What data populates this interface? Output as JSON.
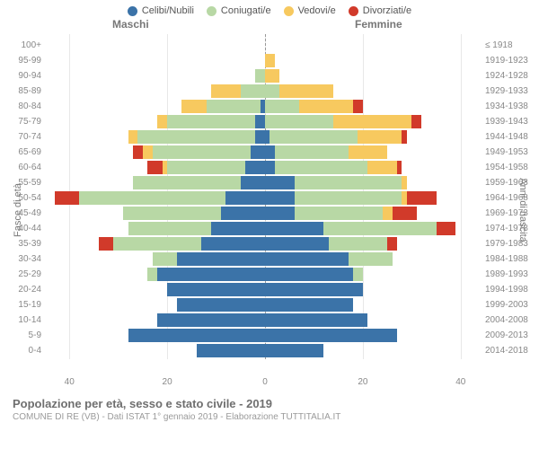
{
  "legend": [
    {
      "label": "Celibi/Nubili",
      "color": "#3b73a8"
    },
    {
      "label": "Coniugati/e",
      "color": "#b8d8a5"
    },
    {
      "label": "Vedovi/e",
      "color": "#f7c95f"
    },
    {
      "label": "Divorziati/e",
      "color": "#d13a2a"
    }
  ],
  "header_male": "Maschi",
  "header_female": "Femmine",
  "ylabel_left": "Fasce di età",
  "ylabel_right": "Anni di nascita",
  "xaxis": {
    "max": 45,
    "ticks": [
      40,
      20,
      0,
      20,
      40
    ]
  },
  "title": "Popolazione per età, sesso e stato civile - 2019",
  "subtitle": "COMUNE DI RE (VB) - Dati ISTAT 1° gennaio 2019 - Elaborazione TUTTITALIA.IT",
  "colors": {
    "celibi": "#3b73a8",
    "coniugati": "#b8d8a5",
    "vedovi": "#f7c95f",
    "divorziati": "#d13a2a",
    "grid": "#e8e8e8",
    "text": "#888888"
  },
  "rows": [
    {
      "age": "100+",
      "birth": "≤ 1918",
      "m": [
        0,
        0,
        0,
        0
      ],
      "f": [
        0,
        0,
        0,
        0
      ]
    },
    {
      "age": "95-99",
      "birth": "1919-1923",
      "m": [
        0,
        0,
        0,
        0
      ],
      "f": [
        0,
        0,
        2,
        0
      ]
    },
    {
      "age": "90-94",
      "birth": "1924-1928",
      "m": [
        0,
        2,
        0,
        0
      ],
      "f": [
        0,
        0,
        3,
        0
      ]
    },
    {
      "age": "85-89",
      "birth": "1929-1933",
      "m": [
        0,
        5,
        6,
        0
      ],
      "f": [
        0,
        3,
        11,
        0
      ]
    },
    {
      "age": "80-84",
      "birth": "1934-1938",
      "m": [
        1,
        11,
        5,
        0
      ],
      "f": [
        0,
        7,
        11,
        2
      ]
    },
    {
      "age": "75-79",
      "birth": "1939-1943",
      "m": [
        2,
        18,
        2,
        0
      ],
      "f": [
        0,
        14,
        16,
        2
      ]
    },
    {
      "age": "70-74",
      "birth": "1944-1948",
      "m": [
        2,
        24,
        2,
        0
      ],
      "f": [
        1,
        18,
        9,
        1
      ]
    },
    {
      "age": "65-69",
      "birth": "1949-1953",
      "m": [
        3,
        20,
        2,
        2
      ],
      "f": [
        2,
        15,
        8,
        0
      ]
    },
    {
      "age": "60-64",
      "birth": "1954-1958",
      "m": [
        4,
        16,
        1,
        3
      ],
      "f": [
        2,
        19,
        6,
        1
      ]
    },
    {
      "age": "55-59",
      "birth": "1959-1963",
      "m": [
        5,
        22,
        0,
        0
      ],
      "f": [
        6,
        22,
        1,
        0
      ]
    },
    {
      "age": "50-54",
      "birth": "1964-1968",
      "m": [
        8,
        30,
        0,
        5
      ],
      "f": [
        6,
        22,
        1,
        6
      ]
    },
    {
      "age": "45-49",
      "birth": "1969-1973",
      "m": [
        9,
        20,
        0,
        0
      ],
      "f": [
        6,
        18,
        2,
        5
      ]
    },
    {
      "age": "40-44",
      "birth": "1974-1978",
      "m": [
        11,
        17,
        0,
        0
      ],
      "f": [
        12,
        23,
        0,
        4
      ]
    },
    {
      "age": "35-39",
      "birth": "1979-1983",
      "m": [
        13,
        18,
        0,
        3
      ],
      "f": [
        13,
        12,
        0,
        2
      ]
    },
    {
      "age": "30-34",
      "birth": "1984-1988",
      "m": [
        18,
        5,
        0,
        0
      ],
      "f": [
        17,
        9,
        0,
        0
      ]
    },
    {
      "age": "25-29",
      "birth": "1989-1993",
      "m": [
        22,
        2,
        0,
        0
      ],
      "f": [
        18,
        2,
        0,
        0
      ]
    },
    {
      "age": "20-24",
      "birth": "1994-1998",
      "m": [
        20,
        0,
        0,
        0
      ],
      "f": [
        20,
        0,
        0,
        0
      ]
    },
    {
      "age": "15-19",
      "birth": "1999-2003",
      "m": [
        18,
        0,
        0,
        0
      ],
      "f": [
        18,
        0,
        0,
        0
      ]
    },
    {
      "age": "10-14",
      "birth": "2004-2008",
      "m": [
        22,
        0,
        0,
        0
      ],
      "f": [
        21,
        0,
        0,
        0
      ]
    },
    {
      "age": "5-9",
      "birth": "2009-2013",
      "m": [
        28,
        0,
        0,
        0
      ],
      "f": [
        27,
        0,
        0,
        0
      ]
    },
    {
      "age": "0-4",
      "birth": "2014-2018",
      "m": [
        14,
        0,
        0,
        0
      ],
      "f": [
        12,
        0,
        0,
        0
      ]
    }
  ]
}
